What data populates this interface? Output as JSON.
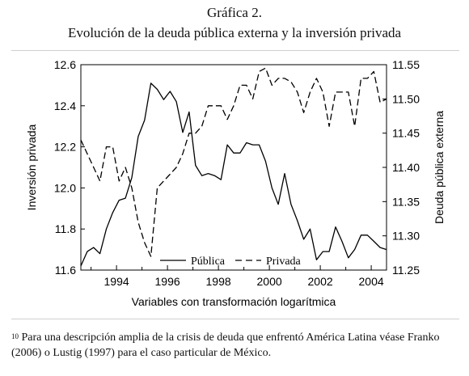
{
  "figure": {
    "title": "Gráfica 2.",
    "subtitle": "Evolución de la deuda pública externa y la inversión privada"
  },
  "chart_data": {
    "type": "line",
    "xlabel": "Variables con transformación logarítmica",
    "ylabel_left": "Inversión privada",
    "ylabel_right": "Deuda pública externa",
    "xlim": [
      1992.6,
      2004.6
    ],
    "ylim_left": [
      11.6,
      12.6
    ],
    "ylim_right": [
      11.25,
      11.55
    ],
    "x_ticks": [
      "1994",
      "1996",
      "1998",
      "2000",
      "2002",
      "2004"
    ],
    "y_ticks_left": [
      "11.6",
      "11.8",
      "12.0",
      "12.2",
      "12.4",
      "12.6"
    ],
    "y_ticks_right": [
      "11.25",
      "11.30",
      "11.35",
      "11.40",
      "11.45",
      "11.50",
      "11.55"
    ],
    "grid": false,
    "legend_position": "bottom-center",
    "series": [
      {
        "name": "Pública",
        "axis": "left",
        "style": "solid",
        "x": [
          1992.6,
          1992.85,
          1993.1,
          1993.35,
          1993.6,
          1993.85,
          1994.1,
          1994.35,
          1994.6,
          1994.85,
          1995.1,
          1995.35,
          1995.6,
          1995.85,
          1996.1,
          1996.35,
          1996.6,
          1996.85,
          1997.1,
          1997.35,
          1997.6,
          1997.85,
          1998.1,
          1998.35,
          1998.6,
          1998.85,
          1999.1,
          1999.35,
          1999.6,
          1999.85,
          2000.1,
          2000.35,
          2000.6,
          2000.85,
          2001.1,
          2001.35,
          2001.6,
          2001.85,
          2002.1,
          2002.35,
          2002.6,
          2002.85,
          2003.1,
          2003.35,
          2003.6,
          2003.85,
          2004.1,
          2004.35,
          2004.6
        ],
        "values": [
          11.62,
          11.69,
          11.71,
          11.68,
          11.8,
          11.88,
          11.94,
          11.95,
          12.05,
          12.25,
          12.33,
          12.51,
          12.48,
          12.43,
          12.47,
          12.42,
          12.27,
          12.37,
          12.11,
          12.06,
          12.07,
          12.06,
          12.04,
          12.21,
          12.17,
          12.17,
          12.22,
          12.21,
          12.21,
          12.13,
          12.0,
          11.92,
          12.07,
          11.92,
          11.84,
          11.75,
          11.8,
          11.65,
          11.69,
          11.69,
          11.81,
          11.74,
          11.66,
          11.7,
          11.77,
          11.77,
          11.74,
          11.71,
          11.7
        ]
      },
      {
        "name": "Privada",
        "axis": "right",
        "style": "dashed",
        "x": [
          1992.6,
          1992.85,
          1993.1,
          1993.35,
          1993.6,
          1993.85,
          1994.1,
          1994.35,
          1994.6,
          1994.85,
          1995.1,
          1995.35,
          1995.6,
          1995.85,
          1996.1,
          1996.35,
          1996.6,
          1996.85,
          1997.1,
          1997.35,
          1997.6,
          1997.85,
          1998.1,
          1998.35,
          1998.6,
          1998.85,
          1999.1,
          1999.35,
          1999.6,
          1999.85,
          2000.1,
          2000.35,
          2000.6,
          2000.85,
          2001.1,
          2001.35,
          2001.6,
          2001.85,
          2002.1,
          2002.35,
          2002.6,
          2002.85,
          2003.1,
          2003.35,
          2003.6,
          2003.85,
          2004.1,
          2004.35,
          2004.6
        ],
        "values": [
          11.44,
          11.42,
          11.4,
          11.38,
          11.43,
          11.43,
          11.38,
          11.4,
          11.37,
          11.32,
          11.29,
          11.27,
          11.37,
          11.38,
          11.39,
          11.4,
          11.42,
          11.45,
          11.45,
          11.46,
          11.49,
          11.49,
          11.49,
          11.47,
          11.49,
          11.52,
          11.52,
          11.5,
          11.54,
          11.545,
          11.52,
          11.53,
          11.53,
          11.525,
          11.51,
          11.48,
          11.51,
          11.53,
          11.51,
          11.46,
          11.51,
          11.51,
          11.51,
          11.46,
          11.53,
          11.53,
          11.54,
          11.495,
          11.5
        ]
      }
    ]
  },
  "footnote": {
    "marker": "10",
    "text": " Para una descripción amplia de la crisis de deuda que enfrentó América Latina véase Franko (2006) o Lustig (1997) para el caso particular de México."
  }
}
